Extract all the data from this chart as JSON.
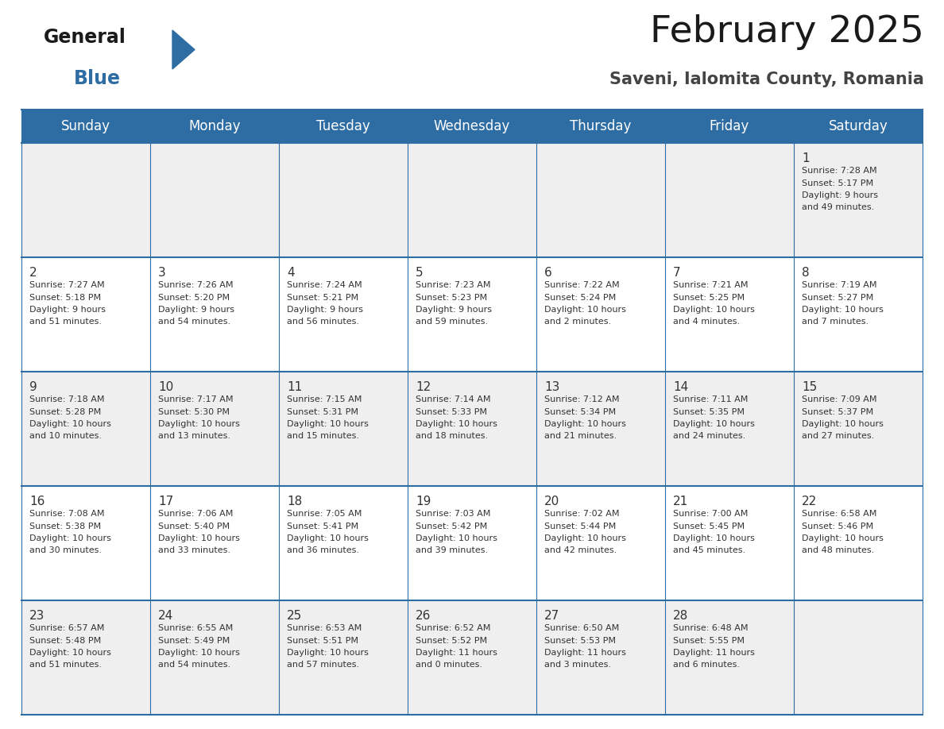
{
  "title": "February 2025",
  "subtitle": "Saveni, Ialomita County, Romania",
  "header_bg": "#2E6DA4",
  "header_text_color": "#FFFFFF",
  "day_names": [
    "Sunday",
    "Monday",
    "Tuesday",
    "Wednesday",
    "Thursday",
    "Friday",
    "Saturday"
  ],
  "background_color": "#FFFFFF",
  "cell_bg_odd": "#EFEFEF",
  "cell_bg_even": "#FFFFFF",
  "cell_border_color": "#2E6DA4",
  "text_color": "#333333",
  "days": [
    {
      "day": 1,
      "col": 6,
      "row": 0,
      "sunrise": "7:28 AM",
      "sunset": "5:17 PM",
      "daylight_h": "9 hours",
      "daylight_m": "and 49 minutes."
    },
    {
      "day": 2,
      "col": 0,
      "row": 1,
      "sunrise": "7:27 AM",
      "sunset": "5:18 PM",
      "daylight_h": "9 hours",
      "daylight_m": "and 51 minutes."
    },
    {
      "day": 3,
      "col": 1,
      "row": 1,
      "sunrise": "7:26 AM",
      "sunset": "5:20 PM",
      "daylight_h": "9 hours",
      "daylight_m": "and 54 minutes."
    },
    {
      "day": 4,
      "col": 2,
      "row": 1,
      "sunrise": "7:24 AM",
      "sunset": "5:21 PM",
      "daylight_h": "9 hours",
      "daylight_m": "and 56 minutes."
    },
    {
      "day": 5,
      "col": 3,
      "row": 1,
      "sunrise": "7:23 AM",
      "sunset": "5:23 PM",
      "daylight_h": "9 hours",
      "daylight_m": "and 59 minutes."
    },
    {
      "day": 6,
      "col": 4,
      "row": 1,
      "sunrise": "7:22 AM",
      "sunset": "5:24 PM",
      "daylight_h": "10 hours",
      "daylight_m": "and 2 minutes."
    },
    {
      "day": 7,
      "col": 5,
      "row": 1,
      "sunrise": "7:21 AM",
      "sunset": "5:25 PM",
      "daylight_h": "10 hours",
      "daylight_m": "and 4 minutes."
    },
    {
      "day": 8,
      "col": 6,
      "row": 1,
      "sunrise": "7:19 AM",
      "sunset": "5:27 PM",
      "daylight_h": "10 hours",
      "daylight_m": "and 7 minutes."
    },
    {
      "day": 9,
      "col": 0,
      "row": 2,
      "sunrise": "7:18 AM",
      "sunset": "5:28 PM",
      "daylight_h": "10 hours",
      "daylight_m": "and 10 minutes."
    },
    {
      "day": 10,
      "col": 1,
      "row": 2,
      "sunrise": "7:17 AM",
      "sunset": "5:30 PM",
      "daylight_h": "10 hours",
      "daylight_m": "and 13 minutes."
    },
    {
      "day": 11,
      "col": 2,
      "row": 2,
      "sunrise": "7:15 AM",
      "sunset": "5:31 PM",
      "daylight_h": "10 hours",
      "daylight_m": "and 15 minutes."
    },
    {
      "day": 12,
      "col": 3,
      "row": 2,
      "sunrise": "7:14 AM",
      "sunset": "5:33 PM",
      "daylight_h": "10 hours",
      "daylight_m": "and 18 minutes."
    },
    {
      "day": 13,
      "col": 4,
      "row": 2,
      "sunrise": "7:12 AM",
      "sunset": "5:34 PM",
      "daylight_h": "10 hours",
      "daylight_m": "and 21 minutes."
    },
    {
      "day": 14,
      "col": 5,
      "row": 2,
      "sunrise": "7:11 AM",
      "sunset": "5:35 PM",
      "daylight_h": "10 hours",
      "daylight_m": "and 24 minutes."
    },
    {
      "day": 15,
      "col": 6,
      "row": 2,
      "sunrise": "7:09 AM",
      "sunset": "5:37 PM",
      "daylight_h": "10 hours",
      "daylight_m": "and 27 minutes."
    },
    {
      "day": 16,
      "col": 0,
      "row": 3,
      "sunrise": "7:08 AM",
      "sunset": "5:38 PM",
      "daylight_h": "10 hours",
      "daylight_m": "and 30 minutes."
    },
    {
      "day": 17,
      "col": 1,
      "row": 3,
      "sunrise": "7:06 AM",
      "sunset": "5:40 PM",
      "daylight_h": "10 hours",
      "daylight_m": "and 33 minutes."
    },
    {
      "day": 18,
      "col": 2,
      "row": 3,
      "sunrise": "7:05 AM",
      "sunset": "5:41 PM",
      "daylight_h": "10 hours",
      "daylight_m": "and 36 minutes."
    },
    {
      "day": 19,
      "col": 3,
      "row": 3,
      "sunrise": "7:03 AM",
      "sunset": "5:42 PM",
      "daylight_h": "10 hours",
      "daylight_m": "and 39 minutes."
    },
    {
      "day": 20,
      "col": 4,
      "row": 3,
      "sunrise": "7:02 AM",
      "sunset": "5:44 PM",
      "daylight_h": "10 hours",
      "daylight_m": "and 42 minutes."
    },
    {
      "day": 21,
      "col": 5,
      "row": 3,
      "sunrise": "7:00 AM",
      "sunset": "5:45 PM",
      "daylight_h": "10 hours",
      "daylight_m": "and 45 minutes."
    },
    {
      "day": 22,
      "col": 6,
      "row": 3,
      "sunrise": "6:58 AM",
      "sunset": "5:46 PM",
      "daylight_h": "10 hours",
      "daylight_m": "and 48 minutes."
    },
    {
      "day": 23,
      "col": 0,
      "row": 4,
      "sunrise": "6:57 AM",
      "sunset": "5:48 PM",
      "daylight_h": "10 hours",
      "daylight_m": "and 51 minutes."
    },
    {
      "day": 24,
      "col": 1,
      "row": 4,
      "sunrise": "6:55 AM",
      "sunset": "5:49 PM",
      "daylight_h": "10 hours",
      "daylight_m": "and 54 minutes."
    },
    {
      "day": 25,
      "col": 2,
      "row": 4,
      "sunrise": "6:53 AM",
      "sunset": "5:51 PM",
      "daylight_h": "10 hours",
      "daylight_m": "and 57 minutes."
    },
    {
      "day": 26,
      "col": 3,
      "row": 4,
      "sunrise": "6:52 AM",
      "sunset": "5:52 PM",
      "daylight_h": "11 hours",
      "daylight_m": "and 0 minutes."
    },
    {
      "day": 27,
      "col": 4,
      "row": 4,
      "sunrise": "6:50 AM",
      "sunset": "5:53 PM",
      "daylight_h": "11 hours",
      "daylight_m": "and 3 minutes."
    },
    {
      "day": 28,
      "col": 5,
      "row": 4,
      "sunrise": "6:48 AM",
      "sunset": "5:55 PM",
      "daylight_h": "11 hours",
      "daylight_m": "and 6 minutes."
    }
  ],
  "logo_general_fontsize": 17,
  "logo_blue_fontsize": 17,
  "title_fontsize": 34,
  "subtitle_fontsize": 15,
  "header_fontsize": 12,
  "day_num_fontsize": 11,
  "cell_text_fontsize": 8
}
